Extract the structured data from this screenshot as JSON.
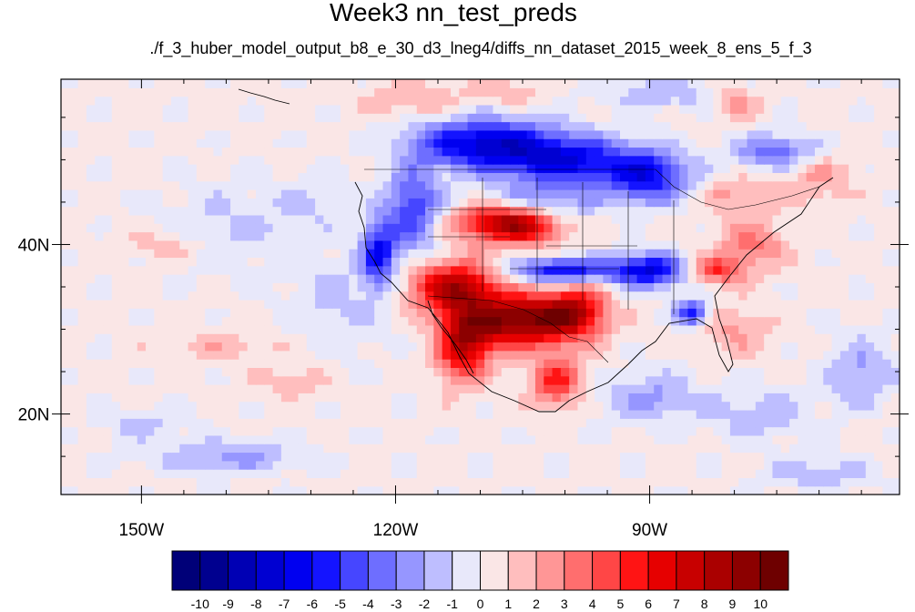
{
  "chart_data": {
    "type": "heatmap",
    "title": "Week3 nn_test_preds",
    "subtitle": "./f_3_huber_model_output_b8_e_30_d3_lneg4/diffs_nn_dataset_2015_week_8_ens_5_f_3",
    "x_ticks": [
      {
        "value": -150,
        "label": "150W"
      },
      {
        "value": -120,
        "label": "120W"
      },
      {
        "value": -90,
        "label": "90W"
      }
    ],
    "y_ticks": [
      {
        "value": 40,
        "label": "40N"
      },
      {
        "value": 20,
        "label": "20N"
      }
    ],
    "xlim": [
      -159.5,
      -60.5
    ],
    "ylim": [
      10.5,
      59.5
    ],
    "colorbar": {
      "levels": [
        -10,
        -9,
        -8,
        -7,
        -6,
        -5,
        -4,
        -3,
        -2,
        -1,
        0,
        1,
        2,
        3,
        4,
        5,
        6,
        7,
        8,
        9,
        10
      ],
      "labels": [
        "-10",
        "-9",
        "-8",
        "-7",
        "-6",
        "-5",
        "-4",
        "-3",
        "-2",
        "-1",
        "0",
        "1",
        "2",
        "3",
        "4",
        "5",
        "6",
        "7",
        "8",
        "9",
        "10"
      ],
      "colors": [
        "#000078",
        "#00008f",
        "#0000b4",
        "#0000d2",
        "#0000f0",
        "#1414ff",
        "#4646ff",
        "#6e6eff",
        "#9696ff",
        "#bebeff",
        "#e8e8fa",
        "#fae6e6",
        "#ffbebe",
        "#ff9696",
        "#ff6e6e",
        "#ff4646",
        "#ff1414",
        "#e60000",
        "#c80000",
        "#aa0000",
        "#8c0000",
        "#6e0000"
      ]
    },
    "field_features": [
      {
        "lon": -140,
        "lat": 42,
        "amp": -1.5,
        "rx": 8,
        "ry": 5
      },
      {
        "lon": -127,
        "lat": 33,
        "amp": -1.5,
        "rx": 6,
        "ry": 6
      },
      {
        "lon": -130,
        "lat": 45,
        "amp": -1.2,
        "rx": 4,
        "ry": 3
      },
      {
        "lon": -147,
        "lat": 40,
        "amp": 1.5,
        "rx": 6,
        "ry": 2
      },
      {
        "lon": -140,
        "lat": 28,
        "amp": 1.4,
        "rx": 7,
        "ry": 2
      },
      {
        "lon": -132,
        "lat": 24,
        "amp": 1.5,
        "rx": 4,
        "ry": 2
      },
      {
        "lon": -140,
        "lat": 15,
        "amp": -2.5,
        "rx": 9,
        "ry": 2
      },
      {
        "lon": -150,
        "lat": 19,
        "amp": -1.5,
        "rx": 5,
        "ry": 2
      },
      {
        "lon": -118,
        "lat": 57,
        "amp": 2.0,
        "rx": 6,
        "ry": 2
      },
      {
        "lon": -107,
        "lat": 58,
        "amp": 1.8,
        "rx": 4,
        "ry": 1.5
      },
      {
        "lon": -110,
        "lat": 52,
        "amp": -7.0,
        "rx": 8,
        "ry": 3
      },
      {
        "lon": -100,
        "lat": 50,
        "amp": -6.5,
        "rx": 8,
        "ry": 3
      },
      {
        "lon": -90,
        "lat": 48,
        "amp": -6.0,
        "rx": 5,
        "ry": 3
      },
      {
        "lon": -118,
        "lat": 44,
        "amp": -5.0,
        "rx": 3,
        "ry": 5
      },
      {
        "lon": -122,
        "lat": 39,
        "amp": -6.0,
        "rx": 2,
        "ry": 4
      },
      {
        "lon": -105,
        "lat": 45,
        "amp": -3.5,
        "rx": 8,
        "ry": 2
      },
      {
        "lon": -108,
        "lat": 43,
        "amp": 7.5,
        "rx": 5,
        "ry": 2.5
      },
      {
        "lon": -104,
        "lat": 42,
        "amp": 4.0,
        "rx": 4,
        "ry": 2
      },
      {
        "lon": -113,
        "lat": 35,
        "amp": 8.0,
        "rx": 5,
        "ry": 3
      },
      {
        "lon": -106,
        "lat": 31,
        "amp": 9.5,
        "rx": 6,
        "ry": 3
      },
      {
        "lon": -99,
        "lat": 32,
        "amp": 7.0,
        "rx": 4,
        "ry": 3
      },
      {
        "lon": -112,
        "lat": 28,
        "amp": 7.0,
        "rx": 3,
        "ry": 4
      },
      {
        "lon": -101,
        "lat": 24,
        "amp": 5.0,
        "rx": 3,
        "ry": 3
      },
      {
        "lon": -100,
        "lat": 37,
        "amp": -6.5,
        "rx": 6,
        "ry": 1.5
      },
      {
        "lon": -90,
        "lat": 37,
        "amp": -7.0,
        "rx": 4,
        "ry": 2
      },
      {
        "lon": -85,
        "lat": 32,
        "amp": -6.0,
        "rx": 2,
        "ry": 1.5
      },
      {
        "lon": -82,
        "lat": 37,
        "amp": 4.5,
        "rx": 3,
        "ry": 1.5
      },
      {
        "lon": -78,
        "lat": 40,
        "amp": 3.0,
        "rx": 4,
        "ry": 3
      },
      {
        "lon": -80,
        "lat": 46,
        "amp": 2.0,
        "rx": 5,
        "ry": 2
      },
      {
        "lon": -75,
        "lat": 51,
        "amp": -4.0,
        "rx": 5,
        "ry": 2
      },
      {
        "lon": -88,
        "lat": 58,
        "amp": -2.0,
        "rx": 8,
        "ry": 2
      },
      {
        "lon": -80,
        "lat": 57,
        "amp": 2.5,
        "rx": 3,
        "ry": 2
      },
      {
        "lon": -70,
        "lat": 48,
        "amp": 2.0,
        "rx": 4,
        "ry": 3
      },
      {
        "lon": -80,
        "lat": 30,
        "amp": 2.0,
        "rx": 4,
        "ry": 3
      },
      {
        "lon": -90,
        "lat": 22,
        "amp": -2.5,
        "rx": 6,
        "ry": 3
      },
      {
        "lon": -77,
        "lat": 20,
        "amp": -2.0,
        "rx": 6,
        "ry": 3
      },
      {
        "lon": -70,
        "lat": 13,
        "amp": -2.0,
        "rx": 6,
        "ry": 2
      },
      {
        "lon": -65,
        "lat": 25,
        "amp": -2.5,
        "rx": 4,
        "ry": 4
      }
    ]
  }
}
